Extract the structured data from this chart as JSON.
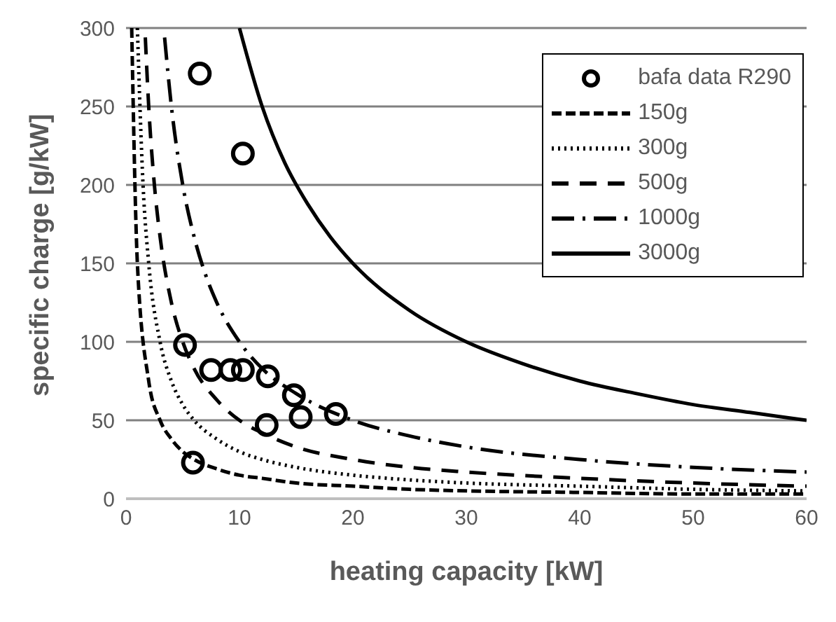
{
  "chart_data": {
    "type": "line",
    "xlabel": "heating capacity [kW]",
    "ylabel": "specific charge [g/kW]",
    "xlim": [
      0,
      60
    ],
    "xticks": [
      0,
      10,
      20,
      30,
      40,
      50,
      60
    ],
    "ylim": [
      0,
      300
    ],
    "yticks": [
      0,
      50,
      100,
      150,
      200,
      250,
      300
    ],
    "grid": "y",
    "legend": "top right",
    "marker": "none",
    "series": [
      {
        "name": "bafa data R290",
        "type": "scatter",
        "marker": "circle",
        "color": "#000000",
        "x": [
          6.5,
          10.3,
          5.2,
          7.5,
          9.2,
          10.3,
          12.5,
          14.8,
          15.4,
          12.4,
          18.5,
          5.9
        ],
        "values": [
          271,
          220,
          98,
          82,
          82,
          82,
          78,
          66,
          52,
          47,
          54,
          23
        ]
      },
      {
        "name": "150g",
        "color": "#000000",
        "line_style": "dashed",
        "x": [
          0.5,
          1,
          2,
          3,
          4,
          5,
          6,
          8,
          10,
          12,
          15,
          20,
          25,
          30,
          40,
          50,
          60
        ],
        "values": [
          300,
          150,
          75,
          50,
          38,
          30,
          25,
          19,
          15,
          13,
          10,
          8,
          6,
          5,
          4,
          3,
          3
        ]
      },
      {
        "name": "300g",
        "color": "#000000",
        "line_style": "dotted",
        "x": [
          1,
          1.5,
          2,
          3,
          4,
          5,
          6,
          8,
          10,
          12,
          15,
          20,
          25,
          30,
          40,
          50,
          60
        ],
        "values": [
          300,
          200,
          150,
          100,
          75,
          60,
          50,
          38,
          30,
          25,
          20,
          15,
          12,
          10,
          8,
          6,
          5
        ]
      },
      {
        "name": "500g",
        "color": "#000000",
        "line_style": "longdash",
        "x": [
          1.7,
          2,
          2.5,
          3,
          4,
          5,
          6,
          8,
          10,
          12,
          15,
          20,
          25,
          30,
          40,
          50,
          60
        ],
        "values": [
          294,
          250,
          200,
          167,
          125,
          100,
          83,
          63,
          50,
          42,
          33,
          25,
          20,
          17,
          13,
          10,
          8
        ]
      },
      {
        "name": "1000g",
        "color": "#000000",
        "line_style": "dashdot",
        "x": [
          3.4,
          4,
          5,
          6,
          7,
          8,
          10,
          12,
          15,
          20,
          25,
          30,
          40,
          50,
          60
        ],
        "values": [
          294,
          250,
          200,
          167,
          143,
          125,
          100,
          83,
          67,
          50,
          40,
          33,
          25,
          20,
          17
        ]
      },
      {
        "name": "3000g",
        "color": "#000000",
        "line_style": "solid",
        "x": [
          10,
          12,
          14,
          16,
          18,
          20,
          25,
          30,
          35,
          40,
          45,
          50,
          55,
          60
        ],
        "values": [
          300,
          250,
          214,
          188,
          167,
          150,
          120,
          100,
          86,
          75,
          67,
          60,
          55,
          50
        ]
      }
    ]
  }
}
